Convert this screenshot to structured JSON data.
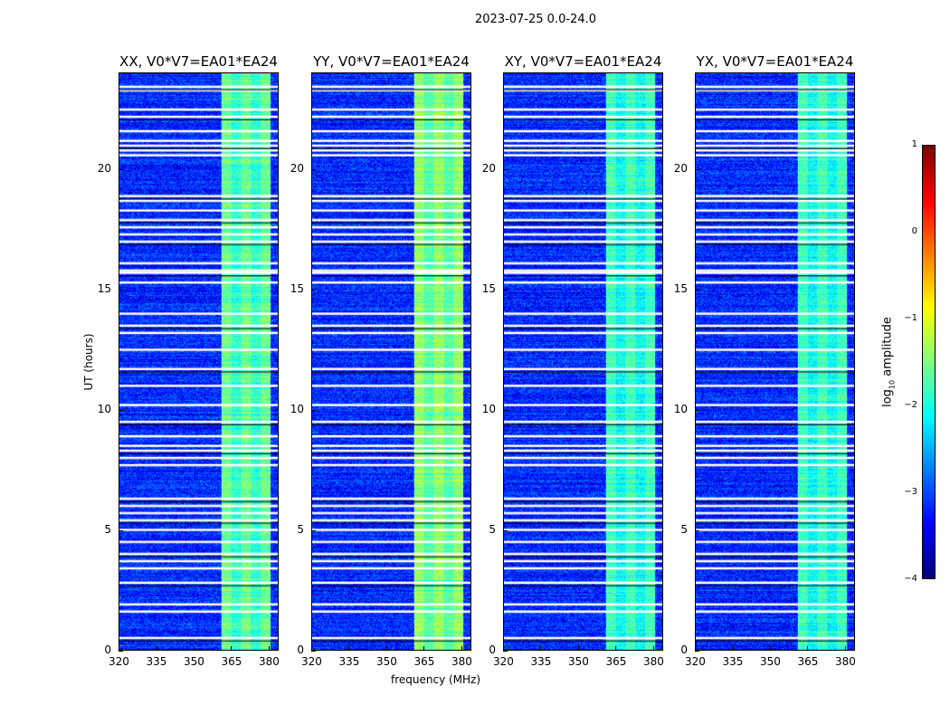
{
  "chart_data": {
    "type": "heatmap",
    "title": "2023-07-25 0.0-24.0",
    "xlabel": "frequency (MHz)",
    "ylabel": "UT (hours)",
    "xlim": [
      320,
      384
    ],
    "ylim": [
      0,
      24
    ],
    "xticks": [
      320,
      335,
      350,
      365,
      380
    ],
    "yticks": [
      0,
      5,
      10,
      15,
      20
    ],
    "panels": [
      {
        "title": "XX, V0*V7=EA01*EA24",
        "band_level": -1.6
      },
      {
        "title": "YY, V0*V7=EA01*EA24",
        "band_level": -1.4
      },
      {
        "title": "XY, V0*V7=EA01*EA24",
        "band_level": -1.8
      },
      {
        "title": "YX, V0*V7=EA01*EA24",
        "band_level": -1.8
      }
    ],
    "background_level": -3.2,
    "rfi_band_mhz": [
      361,
      381
    ],
    "flagged_hours": [
      23.45,
      23.3,
      22.5,
      22.2,
      21.6,
      21.2,
      21.0,
      20.8,
      20.6,
      18.9,
      18.7,
      18.3,
      17.9,
      17.6,
      17.3,
      17.0,
      16.1,
      15.8,
      15.7,
      15.3,
      14.0,
      13.5,
      13.2,
      12.5,
      11.7,
      11.0,
      10.2,
      9.5,
      8.9,
      8.5,
      8.3,
      8.0,
      7.7,
      6.3,
      6.0,
      5.7,
      5.4,
      5.0,
      4.5,
      4.0,
      3.7,
      3.4,
      2.8,
      1.9,
      1.6,
      0.5
    ],
    "colorbar": {
      "label": "log10 amplitude",
      "label_base": "log",
      "label_sub": "10",
      "label_rest": " amplitude",
      "range": [
        -4,
        1
      ],
      "ticks": [
        1,
        0,
        -1,
        -2,
        -3,
        -4
      ],
      "tick_labels": [
        "1",
        "0",
        "−1",
        "−2",
        "−3",
        "−4"
      ],
      "colormap": "jet"
    }
  }
}
